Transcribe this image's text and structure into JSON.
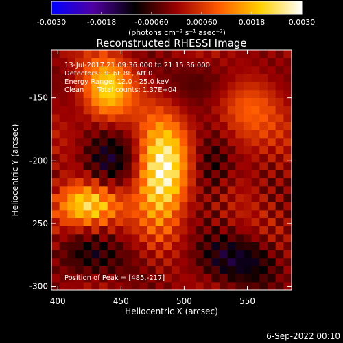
{
  "chart_data": {
    "type": "heatmap",
    "title": "Reconstructed RHESSI Image",
    "xlabel": "Heliocentric X (arcsec)",
    "ylabel": "Heliocentric Y (arcsec)",
    "x_ticks": [
      "400",
      "450",
      "500",
      "550"
    ],
    "x_tick_values": [
      400,
      450,
      500,
      550
    ],
    "y_ticks": [
      "-150",
      "-200",
      "-250",
      "-300"
    ],
    "y_tick_values": [
      -150,
      -200,
      -250,
      -300
    ],
    "xlim": [
      395,
      585
    ],
    "ylim": [
      -303,
      -112
    ],
    "colorbar": {
      "ticks": [
        "-0.0030",
        "-0.0018",
        "-0.00060",
        "0.00060",
        "0.0018",
        "0.0030"
      ],
      "tick_values": [
        -0.003,
        -0.0018,
        -0.0006,
        0.0006,
        0.0018,
        0.003
      ],
      "range": [
        -0.003,
        0.003
      ],
      "units_label": "(photons cm⁻² s⁻¹ asec⁻²)",
      "colors": [
        "#0000ff",
        "#5000a0",
        "#000000",
        "#9b0000",
        "#ff5a00",
        "#ffd000",
        "#ffffff"
      ]
    },
    "annotations": [
      "13-Jul-2017 21:09:36.000 to 21:15:36.000",
      "Detectors: 3F 6F 8F, Att 0",
      "Energy Range: 12.0 - 25.0 keV",
      "Clean      Total counts: 1.37E+04"
    ],
    "peak_label": "Position of Peak = [485,-217]",
    "peak": {
      "x": 485,
      "y": -217
    },
    "sources": [
      {
        "x": 485,
        "y": -212,
        "peak": 0.003,
        "sx": 14,
        "sy": 28
      },
      {
        "x": 423,
        "y": -238,
        "peak": 0.0024,
        "sx": 18,
        "sy": 13
      },
      {
        "x": 440,
        "y": -145,
        "peak": 0.002,
        "sx": 14,
        "sy": 18
      },
      {
        "x": 552,
        "y": -160,
        "peak": 0.0009,
        "sx": 20,
        "sy": 30
      }
    ],
    "negative_regions": [
      {
        "x": 440,
        "y": -205,
        "peak": -0.0012,
        "sx": 16,
        "sy": 18
      },
      {
        "x": 525,
        "y": -205,
        "peak": -0.001,
        "sx": 13,
        "sy": 18
      },
      {
        "x": 535,
        "y": -135,
        "peak": -0.0008,
        "sx": 22,
        "sy": 14
      },
      {
        "x": 545,
        "y": -283,
        "peak": -0.001,
        "sx": 30,
        "sy": 14
      },
      {
        "x": 420,
        "y": -280,
        "peak": -0.0009,
        "sx": 20,
        "sy": 14
      }
    ]
  },
  "footer_date": "6-Sep-2022 00:10"
}
